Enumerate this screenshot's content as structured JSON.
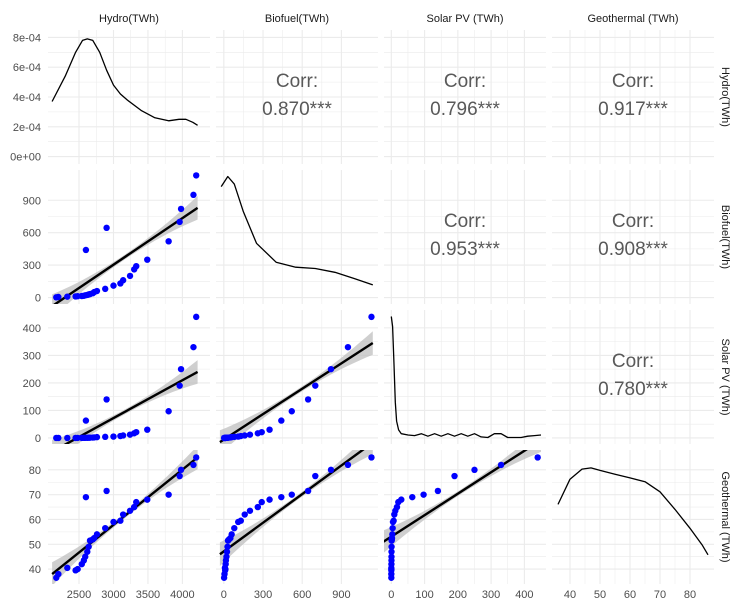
{
  "chart_data": {
    "type": "scatter-matrix",
    "variables": [
      "Hydro(TWh)",
      "Biofuel(TWh)",
      "Solar PV (TWh)",
      "Geothermal (TWh)"
    ],
    "correlation_label": "Corr:",
    "correlations": [
      {
        "row": 0,
        "col": 1,
        "value": "0.870***"
      },
      {
        "row": 0,
        "col": 2,
        "value": "0.796***"
      },
      {
        "row": 0,
        "col": 3,
        "value": "0.917***"
      },
      {
        "row": 1,
        "col": 2,
        "value": "0.953***"
      },
      {
        "row": 1,
        "col": 3,
        "value": "0.908***"
      },
      {
        "row": 2,
        "col": 3,
        "value": "0.780***"
      }
    ],
    "axis_ranges": {
      "hydro": [
        2050,
        4400
      ],
      "biofuel": [
        -60,
        1180
      ],
      "solar": [
        -22,
        465
      ],
      "geothermal": [
        34,
        88
      ],
      "density_hydro": [
        -5e-05,
        0.00085
      ]
    },
    "ticks": {
      "hydro": [
        2500,
        3000,
        3500,
        4000
      ],
      "biofuel": [
        0,
        300,
        600,
        900
      ],
      "solar": [
        0,
        100,
        200,
        300,
        400
      ],
      "geothermal": [
        40,
        50,
        60,
        70,
        80
      ],
      "density_hydro": [
        0,
        0.0002,
        0.0004,
        0.0006,
        0.0008
      ]
    },
    "tick_labels": {
      "hydro": [
        "2500",
        "3000",
        "3500",
        "4000"
      ],
      "biofuel": [
        "0",
        "300",
        "600",
        "900"
      ],
      "solar": [
        "0",
        "100",
        "200",
        "300",
        "400"
      ],
      "geothermal": [
        "40",
        "50",
        "60",
        "70",
        "80"
      ],
      "density_hydro": [
        "0e+00",
        "2e-04",
        "4e-04",
        "6e-04",
        "8e-04"
      ]
    },
    "points": [
      {
        "hydro": 2170,
        "biofuel": 2,
        "solar": 0,
        "geothermal": 36.5
      },
      {
        "hydro": 2200,
        "biofuel": 5,
        "solar": 0,
        "geothermal": 38.0
      },
      {
        "hydro": 2330,
        "biofuel": 8,
        "solar": 0,
        "geothermal": 40.5
      },
      {
        "hydro": 2450,
        "biofuel": 10,
        "solar": 0,
        "geothermal": 39.5
      },
      {
        "hydro": 2480,
        "biofuel": 12,
        "solar": 0.2,
        "geothermal": 40.0
      },
      {
        "hydro": 2540,
        "biofuel": 14,
        "solar": 0.3,
        "geothermal": 42.0
      },
      {
        "hydro": 2570,
        "biofuel": 16,
        "solar": 0.4,
        "geothermal": 43.5
      },
      {
        "hydro": 2590,
        "biofuel": 20,
        "solar": 0.5,
        "geothermal": 45.0
      },
      {
        "hydro": 2600,
        "biofuel": 440,
        "solar": 63,
        "geothermal": 69.0
      },
      {
        "hydro": 2620,
        "biofuel": 24,
        "solar": 0.6,
        "geothermal": 47.0
      },
      {
        "hydro": 2640,
        "biofuel": 28,
        "solar": 0.8,
        "geothermal": 49.0
      },
      {
        "hydro": 2660,
        "biofuel": 32,
        "solar": 1,
        "geothermal": 51.5
      },
      {
        "hydro": 2700,
        "biofuel": 40,
        "solar": 1.5,
        "geothermal": 52.0
      },
      {
        "hydro": 2720,
        "biofuel": 50,
        "solar": 2,
        "geothermal": 52.5
      },
      {
        "hydro": 2760,
        "biofuel": 60,
        "solar": 3,
        "geothermal": 54.0
      },
      {
        "hydro": 2900,
        "biofuel": 645,
        "solar": 140,
        "geothermal": 71.5
      },
      {
        "hydro": 2880,
        "biofuel": 80,
        "solar": 4,
        "geothermal": 56.5
      },
      {
        "hydro": 3000,
        "biofuel": 110,
        "solar": 5,
        "geothermal": 59.0
      },
      {
        "hydro": 3100,
        "biofuel": 130,
        "solar": 7,
        "geothermal": 59.5
      },
      {
        "hydro": 3140,
        "biofuel": 160,
        "solar": 9,
        "geothermal": 62.0
      },
      {
        "hydro": 3240,
        "biofuel": 200,
        "solar": 12,
        "geothermal": 63.5
      },
      {
        "hydro": 3300,
        "biofuel": 260,
        "solar": 17,
        "geothermal": 65.0
      },
      {
        "hydro": 3330,
        "biofuel": 290,
        "solar": 21,
        "geothermal": 67.0
      },
      {
        "hydro": 3490,
        "biofuel": 350,
        "solar": 30,
        "geothermal": 68.0
      },
      {
        "hydro": 3800,
        "biofuel": 520,
        "solar": 97,
        "geothermal": 70.0
      },
      {
        "hydro": 3960,
        "biofuel": 700,
        "solar": 190,
        "geothermal": 77.5
      },
      {
        "hydro": 3980,
        "biofuel": 820,
        "solar": 250,
        "geothermal": 80.0
      },
      {
        "hydro": 4160,
        "biofuel": 950,
        "solar": 330,
        "geothermal": 82.0
      },
      {
        "hydro": 4200,
        "biofuel": 1130,
        "solar": 440,
        "geothermal": 85.0
      }
    ],
    "fits": [
      {
        "row": 1,
        "col": 0,
        "x": [
          2110,
          4220
        ],
        "y": [
          -80,
          830
        ]
      },
      {
        "row": 2,
        "col": 0,
        "x": [
          2110,
          4220
        ],
        "y": [
          -50,
          240
        ]
      },
      {
        "row": 2,
        "col": 1,
        "x": [
          -30,
          1140
        ],
        "y": [
          -15,
          345
        ]
      },
      {
        "row": 3,
        "col": 0,
        "x": [
          2110,
          4220
        ],
        "y": [
          38,
          85
        ]
      },
      {
        "row": 3,
        "col": 1,
        "x": [
          -30,
          1140
        ],
        "y": [
          46,
          91
        ]
      },
      {
        "row": 3,
        "col": 2,
        "x": [
          -30,
          450
        ],
        "y": [
          50.5,
          92
        ]
      }
    ],
    "densities": {
      "hydro": {
        "x": [
          2110,
          2300,
          2450,
          2550,
          2620,
          2700,
          2800,
          2900,
          3000,
          3100,
          3200,
          3400,
          3600,
          3800,
          3950,
          4050,
          4150,
          4220
        ],
        "y": [
          0.00037,
          0.00054,
          0.0007,
          0.00078,
          0.00079,
          0.00078,
          0.0007,
          0.00058,
          0.00048,
          0.00042,
          0.00038,
          0.00031,
          0.00026,
          0.00024,
          0.00025,
          0.00025,
          0.00023,
          0.00021
        ]
      },
      "biofuel": {
        "x": [
          -20,
          30,
          80,
          150,
          250,
          400,
          550,
          700,
          850,
          1000,
          1140
        ],
        "y": [
          0.9,
          0.98,
          0.92,
          0.7,
          0.45,
          0.3,
          0.26,
          0.25,
          0.22,
          0.17,
          0.12
        ]
      },
      "solar": {
        "x": [
          0,
          4,
          8,
          12,
          16,
          22,
          30,
          50,
          70,
          90,
          110,
          130,
          150,
          170,
          190,
          210,
          230,
          250,
          270,
          290,
          310,
          330,
          350,
          370,
          390,
          410,
          430,
          450
        ],
        "y": [
          0.98,
          0.9,
          0.6,
          0.3,
          0.15,
          0.08,
          0.05,
          0.04,
          0.035,
          0.05,
          0.03,
          0.05,
          0.03,
          0.05,
          0.03,
          0.05,
          0.03,
          0.05,
          0.025,
          0.02,
          0.05,
          0.05,
          0.02,
          0.02,
          0.02,
          0.03,
          0.035,
          0.04
        ]
      },
      "geothermal": {
        "x": [
          36,
          40,
          44,
          47,
          50,
          55,
          60,
          65,
          70,
          75,
          80,
          84,
          86
        ],
        "y": [
          0.6,
          0.8,
          0.88,
          0.89,
          0.87,
          0.84,
          0.81,
          0.78,
          0.7,
          0.56,
          0.41,
          0.28,
          0.2
        ]
      }
    },
    "colors": {
      "points": "#0000ff",
      "fit": "#000000",
      "ribbon": "#bfbfbf",
      "grid": "#ebebeb",
      "density": "#000000",
      "corr_text": "#595959"
    },
    "legend": "none",
    "grid": true
  }
}
